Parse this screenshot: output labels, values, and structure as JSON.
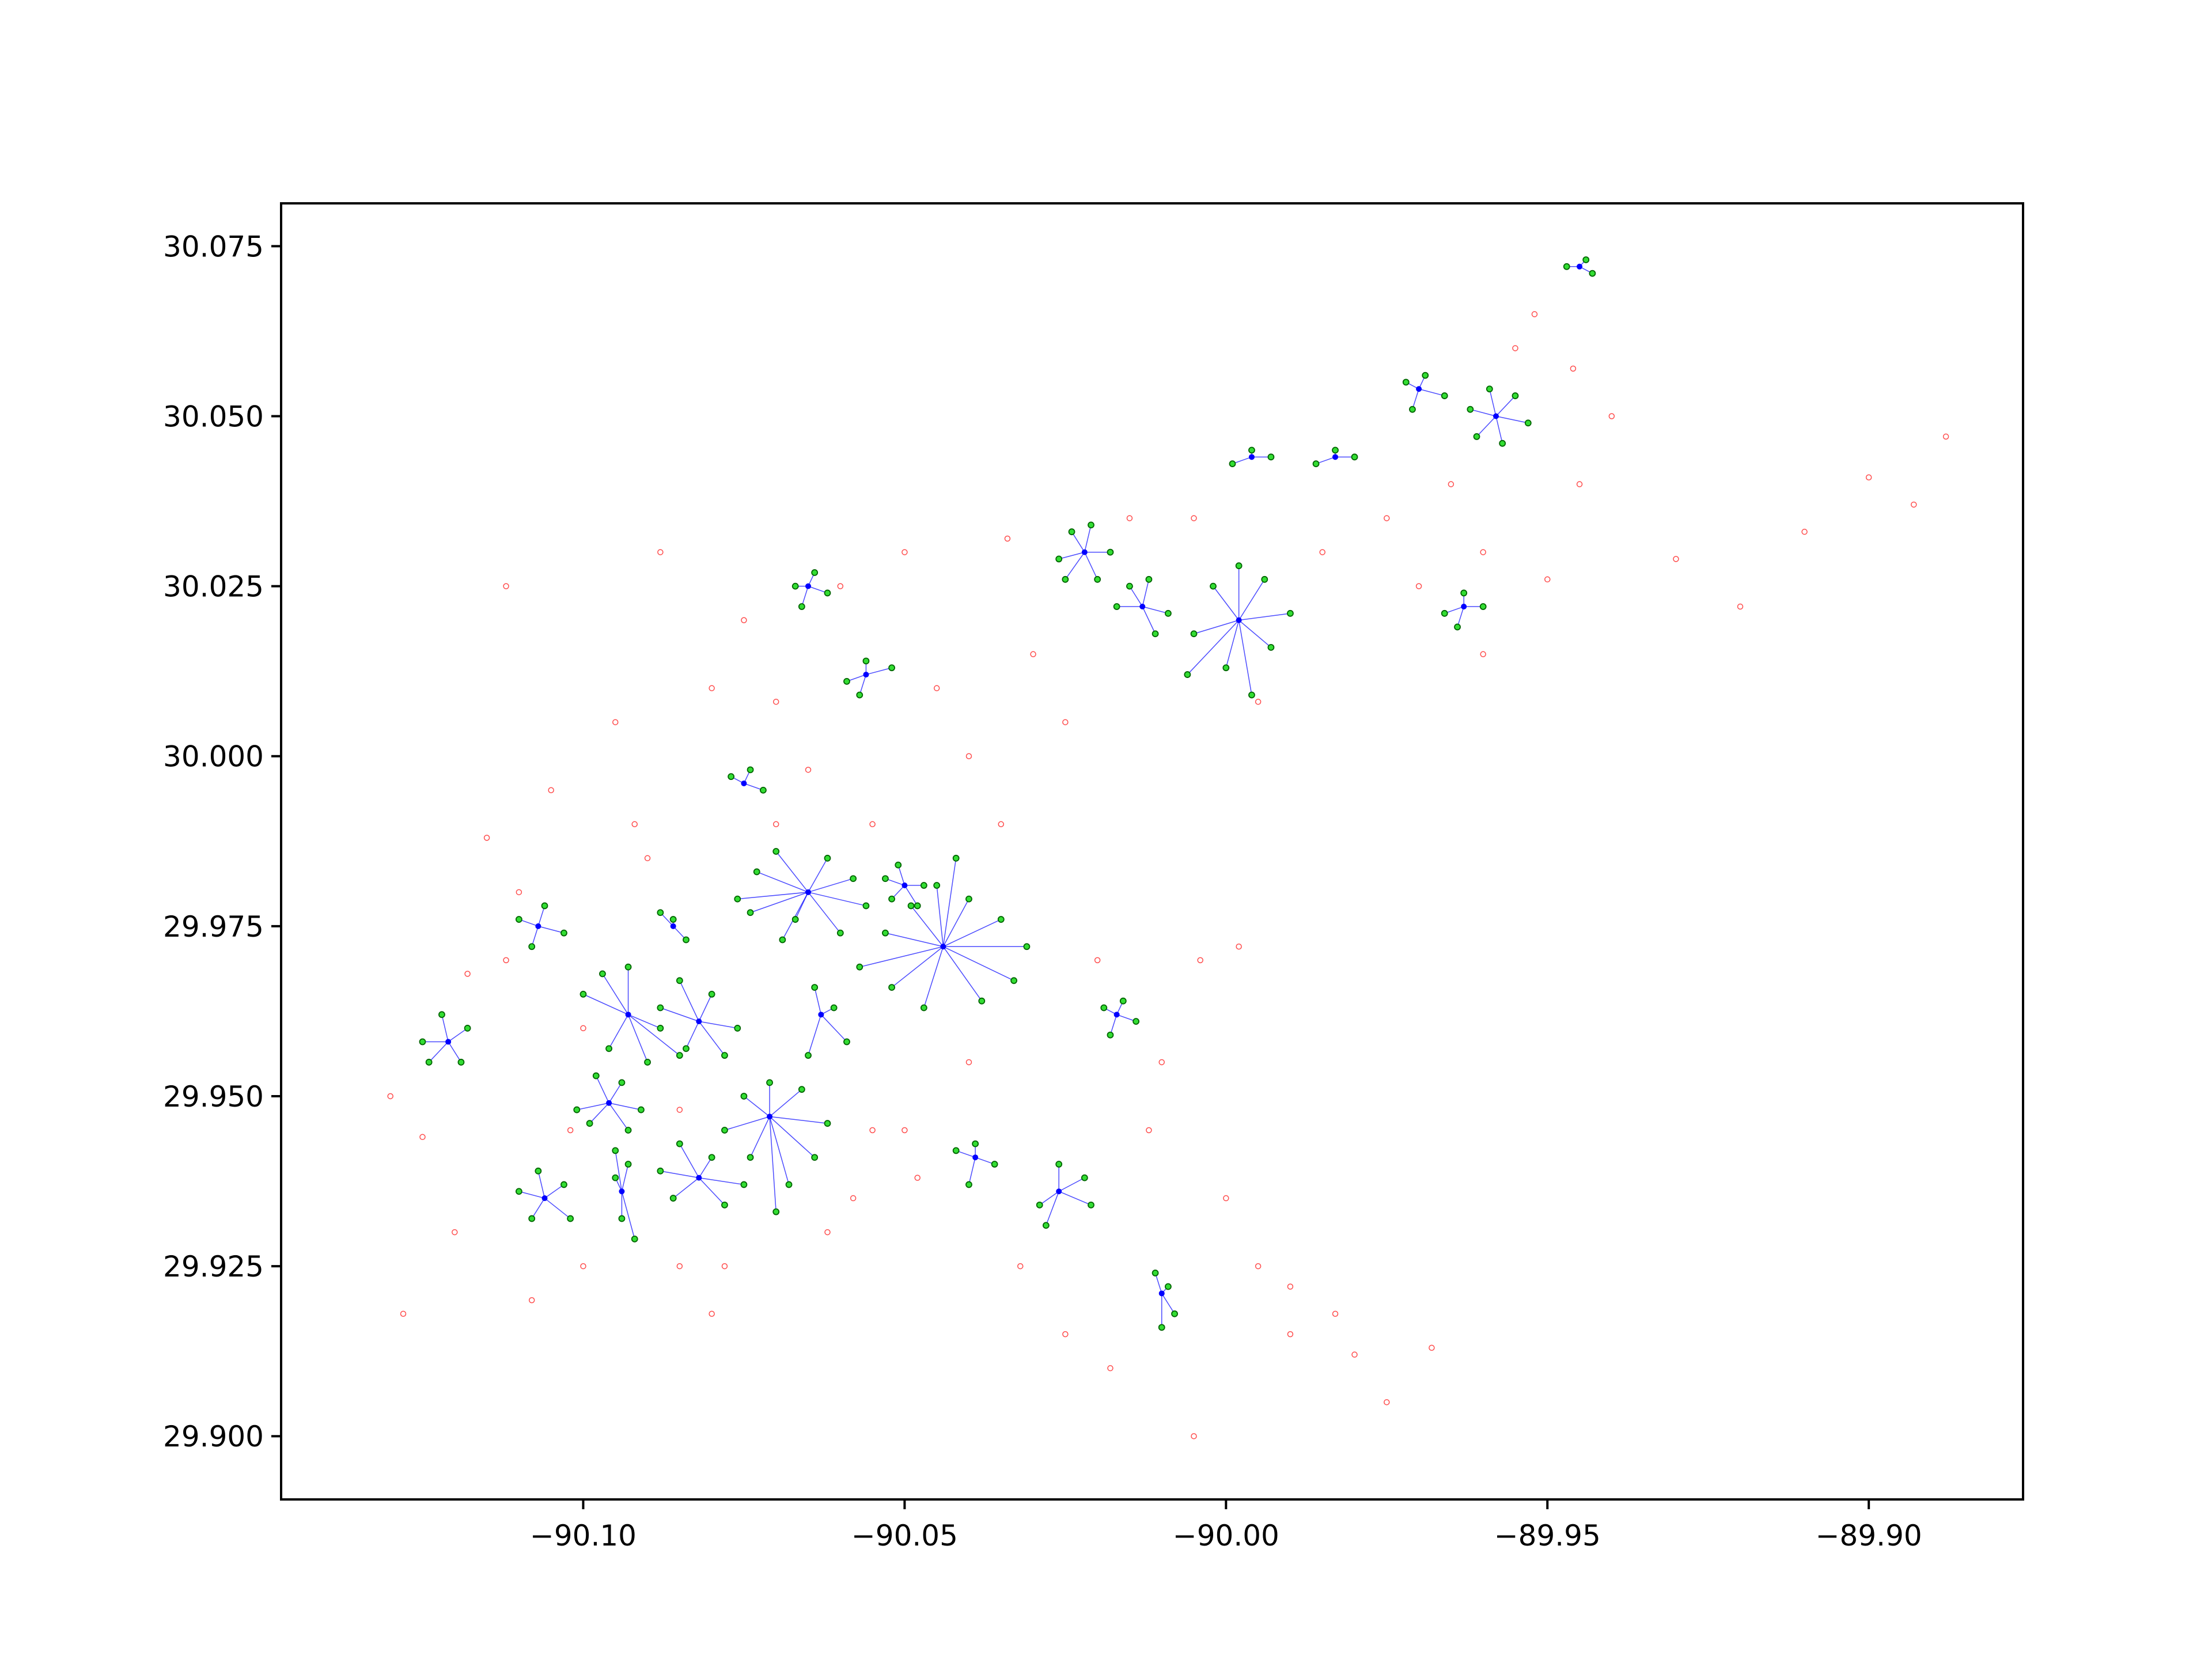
{
  "chart_data": {
    "type": "scatter",
    "xlim": [
      -90.147,
      -89.876
    ],
    "ylim": [
      29.8907,
      30.0813
    ],
    "xticks": [
      {
        "value": -90.1,
        "label": "−90.10"
      },
      {
        "value": -90.05,
        "label": "−90.05"
      },
      {
        "value": -90.0,
        "label": "−90.00"
      },
      {
        "value": -89.95,
        "label": "−89.95"
      },
      {
        "value": -89.9,
        "label": "−89.90"
      }
    ],
    "yticks": [
      {
        "value": 29.9,
        "label": "29.900"
      },
      29.925,
      {
        "value": 29.95,
        "label": "29.950"
      },
      29.975,
      {
        "value": 30.0,
        "label": "30.000"
      },
      30.025,
      {
        "value": 30.05,
        "label": "30.050"
      },
      30.075
    ],
    "noise_color": "#ff0000",
    "member_color": "#33dd33",
    "member_edge": "#006400",
    "center_color": "#0000ff",
    "noise": {
      "x": [
        -90.13,
        -90.125,
        -90.118,
        -90.112,
        -90.11,
        -90.105,
        -90.1,
        -90.095,
        -90.09,
        -90.085,
        -90.08,
        -90.075,
        -90.07,
        -90.065,
        -90.06,
        -90.055,
        -90.05,
        -90.045,
        -90.04,
        -90.035,
        -90.03,
        -90.025,
        -90.02,
        -90.015,
        -90.01,
        -90.005,
        -90.0,
        -89.995,
        -89.99,
        -89.985,
        -89.98,
        -89.975,
        -89.97,
        -89.965,
        -89.96,
        -89.955,
        -89.95,
        -89.945,
        -89.94,
        -89.93,
        -89.92,
        -89.91,
        -89.9,
        -89.893,
        -89.888,
        -90.128,
        -90.12,
        -90.115,
        -90.108,
        -90.1,
        -90.092,
        -90.085,
        -90.078,
        -90.07,
        -90.062,
        -90.055,
        -90.048,
        -90.04,
        -90.032,
        -90.025,
        -90.018,
        -90.012,
        -90.005,
        -89.998,
        -89.99,
        -89.983,
        -89.975,
        -89.968,
        -89.96,
        -89.952,
        -89.946,
        -90.112,
        -90.102,
        -90.088,
        -90.08,
        -90.058,
        -90.05,
        -90.034,
        -90.004,
        -89.995
      ],
      "y": [
        29.95,
        29.944,
        29.968,
        30.025,
        29.98,
        29.995,
        29.925,
        30.005,
        29.985,
        29.925,
        30.01,
        30.02,
        30.008,
        29.998,
        30.025,
        29.99,
        30.03,
        30.01,
        30.0,
        29.99,
        30.015,
        30.005,
        29.97,
        30.035,
        29.955,
        30.035,
        29.935,
        29.925,
        29.915,
        30.03,
        29.912,
        30.035,
        30.025,
        30.04,
        30.03,
        30.06,
        30.026,
        30.04,
        30.05,
        30.029,
        30.022,
        30.033,
        30.041,
        30.037,
        30.047,
        29.918,
        29.93,
        29.988,
        29.92,
        29.96,
        29.99,
        29.948,
        29.925,
        29.99,
        29.93,
        29.945,
        29.938,
        29.955,
        29.925,
        29.915,
        29.91,
        29.945,
        29.9,
        29.972,
        29.922,
        29.918,
        29.905,
        29.913,
        30.015,
        30.065,
        30.057,
        29.97,
        29.945,
        30.03,
        29.918,
        29.935,
        29.945,
        30.032,
        29.97,
        30.008
      ]
    },
    "clusters": [
      {
        "x": -90.065,
        "y": 29.98,
        "members_x": [
          -90.076,
          -90.073,
          -90.07,
          -90.067,
          -90.062,
          -90.058,
          -90.056,
          -90.06,
          -90.069,
          -90.074
        ],
        "members_y": [
          29.979,
          29.983,
          29.986,
          29.976,
          29.985,
          29.982,
          29.978,
          29.974,
          29.973,
          29.977
        ]
      },
      {
        "x": -90.044,
        "y": 29.972,
        "members_x": [
          -90.057,
          -90.053,
          -90.049,
          -90.045,
          -90.04,
          -90.035,
          -90.031,
          -90.033,
          -90.038,
          -90.047,
          -90.052,
          -90.042
        ],
        "members_y": [
          29.969,
          29.974,
          29.978,
          29.981,
          29.979,
          29.976,
          29.972,
          29.967,
          29.964,
          29.963,
          29.966,
          29.985
        ]
      },
      {
        "x": -90.071,
        "y": 29.947,
        "members_x": [
          -90.078,
          -90.075,
          -90.071,
          -90.066,
          -90.062,
          -90.064,
          -90.068,
          -90.074,
          -90.07
        ],
        "members_y": [
          29.945,
          29.95,
          29.952,
          29.951,
          29.946,
          29.941,
          29.937,
          29.941,
          29.933
        ]
      },
      {
        "x": -90.093,
        "y": 29.962,
        "members_x": [
          -90.1,
          -90.097,
          -90.093,
          -90.088,
          -90.085,
          -90.09,
          -90.096
        ],
        "members_y": [
          29.965,
          29.968,
          29.969,
          29.96,
          29.956,
          29.955,
          29.957
        ]
      },
      {
        "x": -90.082,
        "y": 29.961,
        "members_x": [
          -90.088,
          -90.085,
          -90.08,
          -90.076,
          -90.078,
          -90.084
        ],
        "members_y": [
          29.963,
          29.967,
          29.965,
          29.96,
          29.956,
          29.957
        ]
      },
      {
        "x": -89.998,
        "y": 30.02,
        "members_x": [
          -90.005,
          -90.002,
          -89.998,
          -89.994,
          -89.99,
          -89.993,
          -90.0,
          -90.006,
          -89.996
        ],
        "members_y": [
          30.018,
          30.025,
          30.028,
          30.026,
          30.021,
          30.016,
          30.013,
          30.012,
          30.009
        ]
      },
      {
        "x": -90.082,
        "y": 29.938,
        "members_x": [
          -90.088,
          -90.085,
          -90.08,
          -90.075,
          -90.078,
          -90.086
        ],
        "members_y": [
          29.939,
          29.943,
          29.941,
          29.937,
          29.934,
          29.935
        ]
      },
      {
        "x": -90.096,
        "y": 29.949,
        "members_x": [
          -90.101,
          -90.098,
          -90.094,
          -90.091,
          -90.093,
          -90.099
        ],
        "members_y": [
          29.948,
          29.953,
          29.952,
          29.948,
          29.945,
          29.946
        ]
      },
      {
        "x": -90.121,
        "y": 29.958,
        "members_x": [
          -90.125,
          -90.122,
          -90.118,
          -90.119,
          -90.124
        ],
        "members_y": [
          29.958,
          29.962,
          29.96,
          29.955,
          29.955
        ]
      },
      {
        "x": -90.106,
        "y": 29.935,
        "members_x": [
          -90.11,
          -90.107,
          -90.103,
          -90.102,
          -90.108
        ],
        "members_y": [
          29.936,
          29.939,
          29.937,
          29.932,
          29.932
        ]
      },
      {
        "x": -90.094,
        "y": 29.936,
        "members_x": [
          -90.095,
          -90.093,
          -90.094,
          -90.092,
          -90.095
        ],
        "members_y": [
          29.942,
          29.94,
          29.932,
          29.929,
          29.938
        ]
      },
      {
        "x": -90.022,
        "y": 30.03,
        "members_x": [
          -90.026,
          -90.024,
          -90.021,
          -90.018,
          -90.02,
          -90.025
        ],
        "members_y": [
          30.029,
          30.033,
          30.034,
          30.03,
          30.026,
          30.026
        ]
      },
      {
        "x": -90.013,
        "y": 30.022,
        "members_x": [
          -90.017,
          -90.015,
          -90.012,
          -90.009,
          -90.011
        ],
        "members_y": [
          30.022,
          30.025,
          30.026,
          30.021,
          30.018
        ]
      },
      {
        "x": -89.958,
        "y": 30.05,
        "members_x": [
          -89.962,
          -89.959,
          -89.955,
          -89.953,
          -89.957,
          -89.961
        ],
        "members_y": [
          30.051,
          30.054,
          30.053,
          30.049,
          30.046,
          30.047
        ]
      },
      {
        "x": -89.97,
        "y": 30.054,
        "members_x": [
          -89.972,
          -89.969,
          -89.966,
          -89.971
        ],
        "members_y": [
          30.055,
          30.056,
          30.053,
          30.051
        ]
      },
      {
        "x": -90.026,
        "y": 29.936,
        "members_x": [
          -90.029,
          -90.026,
          -90.022,
          -90.021,
          -90.028
        ],
        "members_y": [
          29.934,
          29.94,
          29.938,
          29.934,
          29.931
        ]
      },
      {
        "x": -90.01,
        "y": 29.921,
        "members_x": [
          -90.011,
          -90.009,
          -90.008,
          -90.01
        ],
        "members_y": [
          29.924,
          29.922,
          29.918,
          29.916
        ]
      },
      {
        "x": -90.05,
        "y": 29.981,
        "members_x": [
          -90.053,
          -90.051,
          -90.047,
          -90.048,
          -90.052
        ],
        "members_y": [
          29.982,
          29.984,
          29.981,
          29.978,
          29.979
        ]
      },
      {
        "x": -90.063,
        "y": 29.962,
        "members_x": [
          -90.064,
          -90.061,
          -90.059,
          -90.065
        ],
        "members_y": [
          29.966,
          29.963,
          29.958,
          29.956
        ]
      },
      {
        "x": -90.107,
        "y": 29.975,
        "members_x": [
          -90.11,
          -90.106,
          -90.103,
          -90.108
        ],
        "members_y": [
          29.976,
          29.978,
          29.974,
          29.972
        ]
      },
      {
        "x": -89.963,
        "y": 30.022,
        "members_x": [
          -89.966,
          -89.963,
          -89.96,
          -89.964
        ],
        "members_y": [
          30.021,
          30.024,
          30.022,
          30.019
        ]
      },
      {
        "x": -90.056,
        "y": 30.012,
        "members_x": [
          -90.059,
          -90.056,
          -90.052,
          -90.057
        ],
        "members_y": [
          30.011,
          30.014,
          30.013,
          30.009
        ]
      },
      {
        "x": -90.065,
        "y": 30.025,
        "members_x": [
          -90.067,
          -90.064,
          -90.062,
          -90.066
        ],
        "members_y": [
          30.025,
          30.027,
          30.024,
          30.022
        ]
      },
      {
        "x": -90.039,
        "y": 29.941,
        "members_x": [
          -90.042,
          -90.039,
          -90.036,
          -90.04
        ],
        "members_y": [
          29.942,
          29.943,
          29.94,
          29.937
        ]
      },
      {
        "x": -90.017,
        "y": 29.962,
        "members_x": [
          -90.019,
          -90.016,
          -90.014,
          -90.018
        ],
        "members_y": [
          29.963,
          29.964,
          29.961,
          29.959
        ]
      },
      {
        "x": -89.996,
        "y": 30.044,
        "members_x": [
          -89.999,
          -89.996,
          -89.993
        ],
        "members_y": [
          30.043,
          30.045,
          30.044
        ]
      },
      {
        "x": -89.945,
        "y": 30.072,
        "members_x": [
          -89.947,
          -89.944,
          -89.943
        ],
        "members_y": [
          30.072,
          30.073,
          30.071
        ]
      },
      {
        "x": -90.086,
        "y": 29.975,
        "members_x": [
          -90.088,
          -90.086,
          -90.084
        ],
        "members_y": [
          29.977,
          29.976,
          29.973
        ]
      },
      {
        "x": -90.075,
        "y": 29.996,
        "members_x": [
          -90.077,
          -90.074,
          -90.072
        ],
        "members_y": [
          29.997,
          29.998,
          29.995
        ]
      },
      {
        "x": -89.983,
        "y": 30.044,
        "members_x": [
          -89.986,
          -89.983,
          -89.98
        ],
        "members_y": [
          30.043,
          30.045,
          30.044
        ]
      }
    ]
  }
}
